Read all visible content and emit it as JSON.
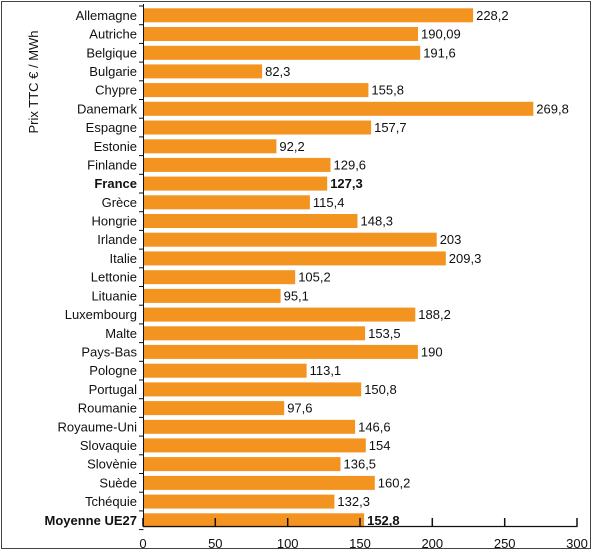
{
  "chart_data": {
    "type": "bar",
    "orientation": "horizontal",
    "ylabel": "Prix TTC € / MWh",
    "xlabel": "",
    "xlim": [
      0,
      300
    ],
    "xticks": [
      0,
      50,
      100,
      150,
      200,
      250,
      300
    ],
    "bar_color": "#f39420",
    "grid": false,
    "categories": [
      "Allemagne",
      "Autriche",
      "Belgique",
      "Bulgarie",
      "Chypre",
      "Danemark",
      "Espagne",
      "Estonie",
      "Finlande",
      "France",
      "Grèce",
      "Hongrie",
      "Irlande",
      "Italie",
      "Lettonie",
      "Lituanie",
      "Luxembourg",
      "Malte",
      "Pays-Bas",
      "Pologne",
      "Portugal",
      "Roumanie",
      "Royaume-Uni",
      "Slovaquie",
      "Slovènie",
      "Suède",
      "Tchéquie",
      "Moyenne UE27"
    ],
    "values": [
      228.2,
      190.09,
      191.6,
      82.3,
      155.8,
      269.8,
      157.7,
      92.2,
      129.6,
      127.3,
      115.4,
      148.3,
      203,
      209.3,
      105.2,
      95.1,
      188.2,
      153.5,
      190,
      113.1,
      150.8,
      97.6,
      146.6,
      154,
      136.5,
      160.2,
      132.3,
      152.8
    ],
    "value_labels": [
      "228,2",
      "190,09",
      "191,6",
      "82,3",
      "155,8",
      "269,8",
      "157,7",
      "92,2",
      "129,6",
      "127,3",
      "115,4",
      "148,3",
      "203",
      "209,3",
      "105,2",
      "95,1",
      "188,2",
      "153,5",
      "190",
      "113,1",
      "150,8",
      "97,6",
      "146,6",
      "154",
      "136,5",
      "160,2",
      "132,3",
      "152,8"
    ],
    "bold_categories": [
      "France",
      "Moyenne UE27"
    ]
  }
}
